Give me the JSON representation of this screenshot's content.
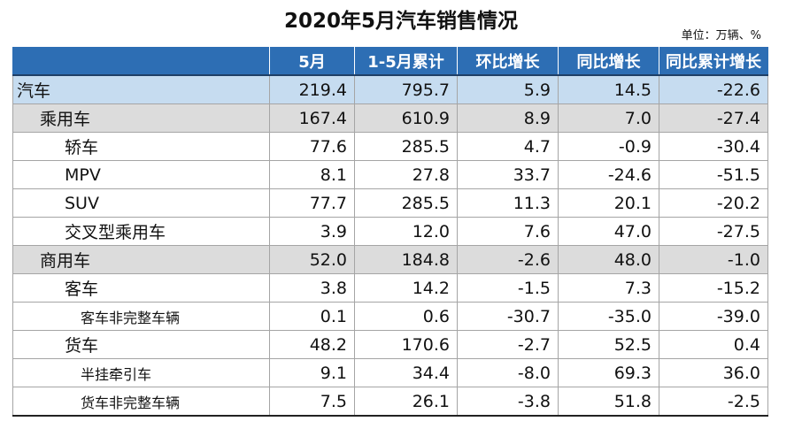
{
  "title": "2020年5月汽车销售情况",
  "unit": "单位：万辆、%",
  "columns": [
    "",
    "5月",
    "1-5月累计",
    "环比增长",
    "同比增长",
    "同比累计增长"
  ],
  "rows": [
    {
      "name": "汽车",
      "level": 0,
      "values": [
        "219.4",
        "795.7",
        "5.9",
        "14.5",
        "-22.6"
      ]
    },
    {
      "name": "乘用车",
      "level": 1,
      "values": [
        "167.4",
        "610.9",
        "8.9",
        "7.0",
        "-27.4"
      ]
    },
    {
      "name": "轿车",
      "level": 2,
      "values": [
        "77.6",
        "285.5",
        "4.7",
        "-0.9",
        "-30.4"
      ]
    },
    {
      "name": "MPV",
      "level": 2,
      "values": [
        "8.1",
        "27.8",
        "33.7",
        "-24.6",
        "-51.5"
      ]
    },
    {
      "name": "SUV",
      "level": 2,
      "values": [
        "77.7",
        "285.5",
        "11.3",
        "20.1",
        "-20.2"
      ]
    },
    {
      "name": "交叉型乘用车",
      "level": 2,
      "values": [
        "3.9",
        "12.0",
        "7.6",
        "47.0",
        "-27.5"
      ]
    },
    {
      "name": "商用车",
      "level": 1,
      "values": [
        "52.0",
        "184.8",
        "-2.6",
        "48.0",
        "-1.0"
      ]
    },
    {
      "name": "客车",
      "level": 2,
      "values": [
        "3.8",
        "14.2",
        "-1.5",
        "7.3",
        "-15.2"
      ]
    },
    {
      "name": "客车非完整车辆",
      "level": 3,
      "values": [
        "0.1",
        "0.6",
        "-30.7",
        "-35.0",
        "-39.0"
      ]
    },
    {
      "name": "货车",
      "level": 2,
      "values": [
        "48.2",
        "170.6",
        "-2.7",
        "52.5",
        "0.4"
      ]
    },
    {
      "name": "半挂牵引车",
      "level": 3,
      "values": [
        "9.1",
        "34.4",
        "-8.0",
        "69.3",
        "36.0"
      ]
    },
    {
      "name": "货车非完整车辆",
      "level": 3,
      "values": [
        "7.5",
        "26.1",
        "-3.8",
        "51.8",
        "-2.5"
      ]
    }
  ],
  "colors": {
    "header_bg": "#2d6eb4",
    "total_row_bg": "#c6dcf0",
    "group_row_bg": "#dcdcdc"
  }
}
